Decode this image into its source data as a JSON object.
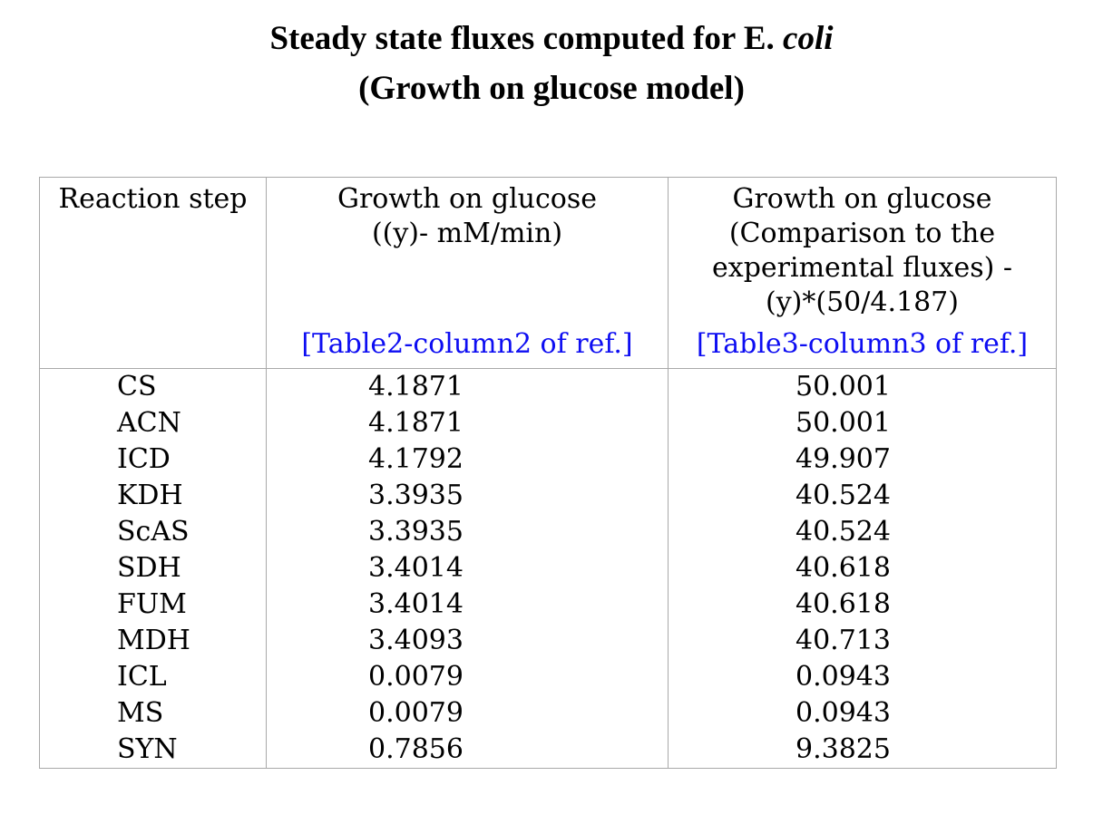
{
  "title": {
    "line1_roman": "Steady state fluxes computed for E.",
    "line1_italic": "coli",
    "line2": "(Growth on glucose model)"
  },
  "chart_data": {
    "type": "table",
    "title": "Steady state fluxes computed for E. coli (Growth on glucose model)",
    "columns": [
      {
        "id": "reaction_step",
        "header_lines": [
          "Reaction step"
        ],
        "ref": ""
      },
      {
        "id": "growth_on_glucose_flux",
        "header_lines": [
          "Growth on glucose",
          "((y)- mM/min)"
        ],
        "ref": "[Table2-column2 of ref.]"
      },
      {
        "id": "growth_on_glucose_comparison",
        "header_lines": [
          "Growth on glucose",
          "(Comparison to the",
          "experimental fluxes) -",
          "(y)*(50/4.187)"
        ],
        "ref": "[Table3-column3 of ref.]"
      }
    ],
    "rows": [
      {
        "step": "CS",
        "glucose_flux": "4.1871",
        "comparison_flux": "50.001"
      },
      {
        "step": "ACN",
        "glucose_flux": "4.1871",
        "comparison_flux": "50.001"
      },
      {
        "step": "ICD",
        "glucose_flux": "4.1792",
        "comparison_flux": "49.907"
      },
      {
        "step": "KDH",
        "glucose_flux": "3.3935",
        "comparison_flux": "40.524"
      },
      {
        "step": "ScAS",
        "glucose_flux": "3.3935",
        "comparison_flux": "40.524"
      },
      {
        "step": "SDH",
        "glucose_flux": "3.4014",
        "comparison_flux": "40.618"
      },
      {
        "step": "FUM",
        "glucose_flux": "3.4014",
        "comparison_flux": "40.618"
      },
      {
        "step": "MDH",
        "glucose_flux": "3.4093",
        "comparison_flux": "40.713"
      },
      {
        "step": "ICL",
        "glucose_flux": "0.0079",
        "comparison_flux": "0.0943"
      },
      {
        "step": "MS",
        "glucose_flux": "0.0079",
        "comparison_flux": "0.0943"
      },
      {
        "step": "SYN",
        "glucose_flux": "0.7856",
        "comparison_flux": "9.3825"
      }
    ]
  },
  "colors": {
    "link_blue": "#0d0df2",
    "border_gray": "#a9a9a9",
    "text_black": "#000000",
    "background": "#ffffff"
  }
}
